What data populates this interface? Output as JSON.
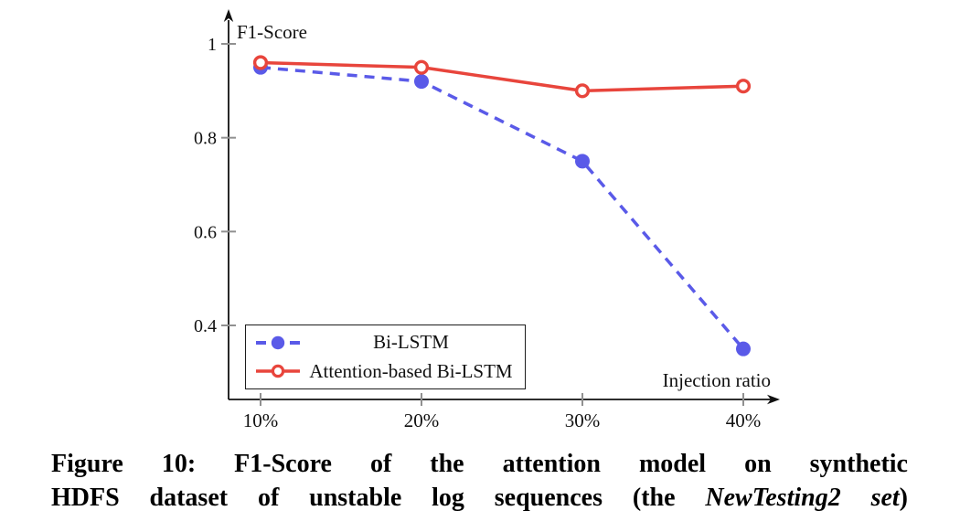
{
  "chart_data": {
    "type": "line",
    "title": "",
    "ylabel": "F1-Score",
    "xlabel": "Injection ratio",
    "categories": [
      "10%",
      "20%",
      "30%",
      "40%"
    ],
    "yticks": [
      "1",
      "0.8",
      "0.6",
      "0.4"
    ],
    "ytick_values": [
      1,
      0.8,
      0.6,
      0.4
    ],
    "ylim": [
      0.3,
      1.02
    ],
    "grid": false,
    "legend_position": "south west",
    "series": [
      {
        "name": "Bi-LSTM",
        "values": [
          0.95,
          0.92,
          0.75,
          0.35
        ],
        "color": "#5a5ae8",
        "style": "dashed",
        "marker": "filled-circle"
      },
      {
        "name": "Attention-based Bi-LSTM",
        "values": [
          0.96,
          0.95,
          0.9,
          0.91
        ],
        "color": "#e8453c",
        "style": "solid",
        "marker": "open-circle"
      }
    ]
  },
  "colors": {
    "axis": "#111111",
    "tick": "#909090",
    "text": "#111111"
  },
  "caption": {
    "line1": "Figure 10: F1-Score of the attention model on synthetic",
    "line2_prefix": "HDFS dataset of unstable log sequences (the ",
    "line2_emphasis": "NewTesting2 set",
    "line2_suffix": ")"
  }
}
